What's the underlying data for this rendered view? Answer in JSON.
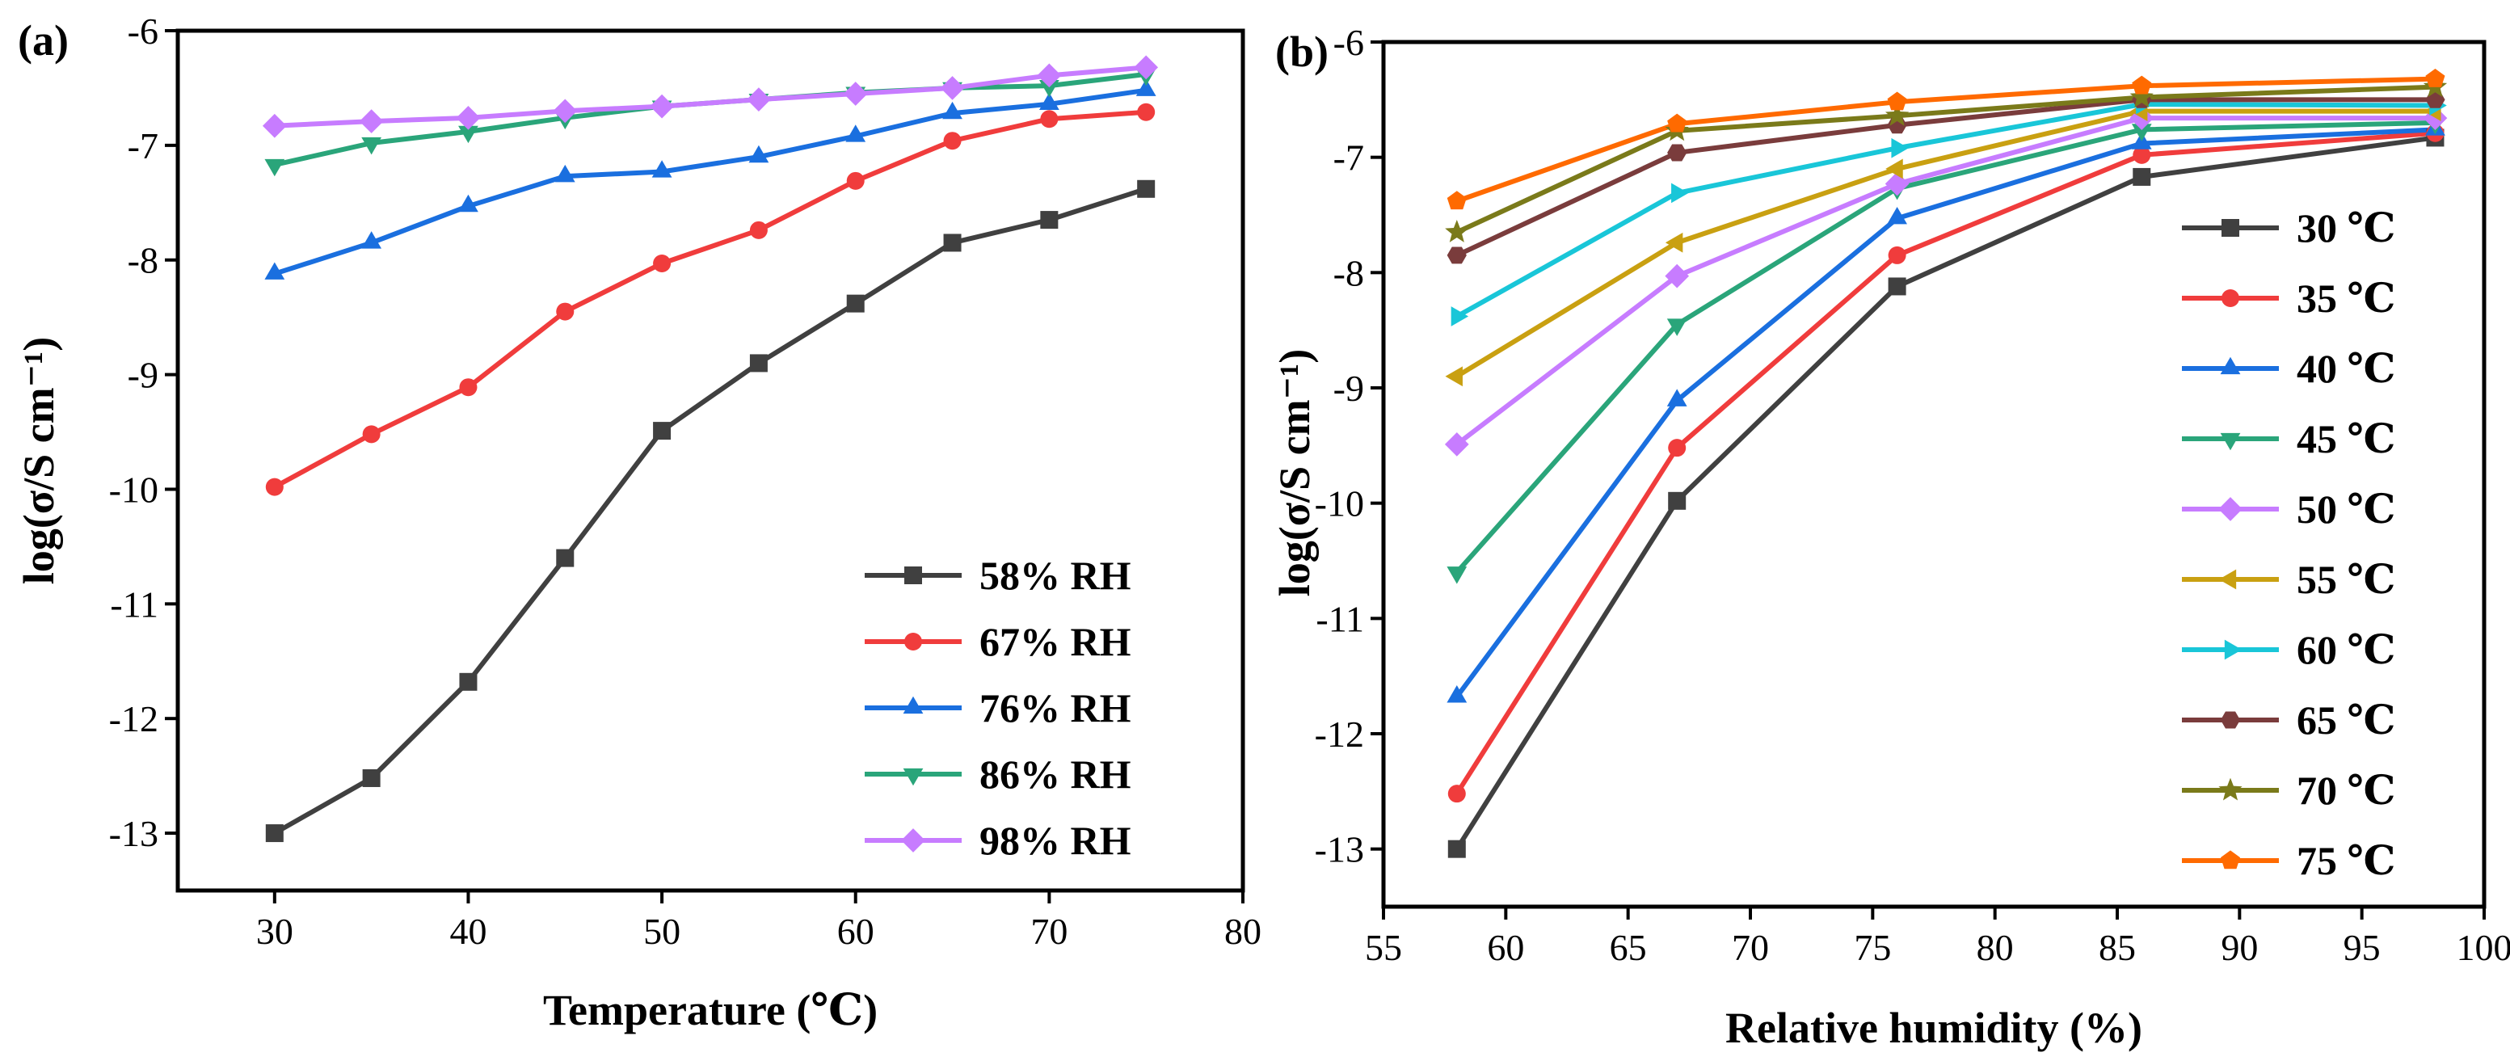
{
  "chart_data": [
    {
      "panel_label": "(a)",
      "type": "line",
      "xlabel": "Temperature (℃)",
      "ylabel": "log(σ/S cm⁻¹)",
      "xlim": [
        25,
        80
      ],
      "ylim": [
        -13.5,
        -6
      ],
      "xticks": [
        30,
        40,
        50,
        60,
        70,
        80
      ],
      "yticks": [
        -6,
        -7,
        -8,
        -9,
        -10,
        -11,
        -12,
        -13
      ],
      "legend_position": "bottom-right",
      "x": [
        30,
        35,
        40,
        45,
        50,
        55,
        60,
        65,
        70,
        75
      ],
      "series": [
        {
          "name": "58% RH",
          "color": "#404040",
          "marker": "square",
          "values": [
            -13.0,
            -12.52,
            -11.68,
            -10.6,
            -9.49,
            -8.9,
            -8.38,
            -7.85,
            -7.65,
            -7.38
          ]
        },
        {
          "name": "67% RH",
          "color": "#f03c3c",
          "marker": "circle",
          "values": [
            -9.98,
            -9.52,
            -9.11,
            -8.45,
            -8.03,
            -7.74,
            -7.31,
            -6.96,
            -6.77,
            -6.71
          ]
        },
        {
          "name": "76% RH",
          "color": "#1a6fdf",
          "marker": "triangle-up",
          "values": [
            -8.12,
            -7.85,
            -7.53,
            -7.27,
            -7.23,
            -7.1,
            -6.92,
            -6.72,
            -6.64,
            -6.52
          ]
        },
        {
          "name": "86% RH",
          "color": "#2aa57a",
          "marker": "triangle-down",
          "values": [
            -7.17,
            -6.98,
            -6.88,
            -6.76,
            -6.66,
            -6.6,
            -6.54,
            -6.5,
            -6.48,
            -6.38
          ]
        },
        {
          "name": "98% RH",
          "color": "#c77cff",
          "marker": "diamond",
          "values": [
            -6.83,
            -6.79,
            -6.76,
            -6.7,
            -6.66,
            -6.6,
            -6.55,
            -6.5,
            -6.39,
            -6.32
          ]
        }
      ]
    },
    {
      "panel_label": "(b)",
      "type": "line",
      "xlabel": "Relative humidity (%)",
      "ylabel": "log(σ/S cm⁻¹)",
      "xlim": [
        55,
        100
      ],
      "ylim": [
        -13.5,
        -6
      ],
      "xticks": [
        55,
        60,
        65,
        70,
        75,
        80,
        85,
        90,
        95,
        100
      ],
      "yticks": [
        -6,
        -7,
        -8,
        -9,
        -10,
        -11,
        -12,
        -13
      ],
      "legend_position": "right",
      "x": [
        58,
        67,
        76,
        86,
        98
      ],
      "series": [
        {
          "name": "30 ℃",
          "color": "#404040",
          "marker": "square",
          "values": [
            -13.0,
            -9.98,
            -8.12,
            -7.17,
            -6.83
          ]
        },
        {
          "name": "35 ℃",
          "color": "#f03c3c",
          "marker": "circle",
          "values": [
            -12.52,
            -9.52,
            -7.85,
            -6.98,
            -6.79
          ]
        },
        {
          "name": "40 ℃",
          "color": "#1a6fdf",
          "marker": "triangle-up",
          "values": [
            -11.68,
            -9.11,
            -7.53,
            -6.88,
            -6.76
          ]
        },
        {
          "name": "45 ℃",
          "color": "#2aa57a",
          "marker": "triangle-down",
          "values": [
            -10.6,
            -8.45,
            -7.27,
            -6.76,
            -6.7
          ]
        },
        {
          "name": "50 ℃",
          "color": "#c77cff",
          "marker": "diamond",
          "values": [
            -9.49,
            -8.03,
            -7.23,
            -6.66,
            -6.66
          ]
        },
        {
          "name": "55 ℃",
          "color": "#c9a011",
          "marker": "triangle-left",
          "values": [
            -8.9,
            -7.74,
            -7.1,
            -6.6,
            -6.6
          ]
        },
        {
          "name": "60 ℃",
          "color": "#19c6d8",
          "marker": "triangle-right",
          "values": [
            -8.38,
            -7.31,
            -6.92,
            -6.54,
            -6.55
          ]
        },
        {
          "name": "65 ℃",
          "color": "#7a3c3c",
          "marker": "hexagon",
          "values": [
            -7.85,
            -6.96,
            -6.72,
            -6.5,
            -6.5
          ]
        },
        {
          "name": "70 ℃",
          "color": "#7a7a1a",
          "marker": "star",
          "values": [
            -7.65,
            -6.77,
            -6.64,
            -6.48,
            -6.39
          ]
        },
        {
          "name": "75 ℃",
          "color": "#ff6a00",
          "marker": "pentagon",
          "values": [
            -7.38,
            -6.71,
            -6.52,
            -6.38,
            -6.32
          ]
        }
      ]
    }
  ]
}
